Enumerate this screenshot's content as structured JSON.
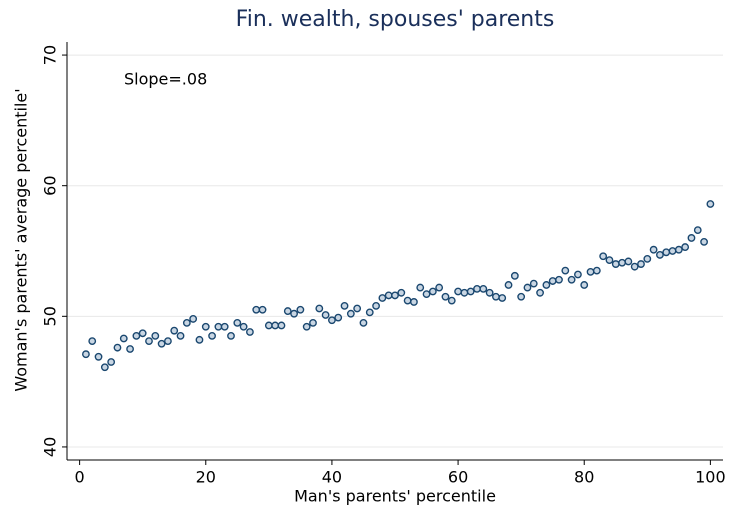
{
  "chart_data": {
    "type": "scatter",
    "title": "Fin. wealth, spouses' parents",
    "xlabel": "Man's parents' percentile",
    "ylabel": "Woman's parents' average percentile'",
    "annotation": "Slope=.08",
    "x": [
      1,
      2,
      3,
      4,
      5,
      6,
      7,
      8,
      9,
      10,
      11,
      12,
      13,
      14,
      15,
      16,
      17,
      18,
      19,
      20,
      21,
      22,
      23,
      24,
      25,
      26,
      27,
      28,
      29,
      30,
      31,
      32,
      33,
      34,
      35,
      36,
      37,
      38,
      39,
      40,
      41,
      42,
      43,
      44,
      45,
      46,
      47,
      48,
      49,
      50,
      51,
      52,
      53,
      54,
      55,
      56,
      57,
      58,
      59,
      60,
      61,
      62,
      63,
      64,
      65,
      66,
      67,
      68,
      69,
      70,
      71,
      72,
      73,
      74,
      75,
      76,
      77,
      78,
      79,
      80,
      81,
      82,
      83,
      84,
      85,
      86,
      87,
      88,
      89,
      90,
      91,
      92,
      93,
      94,
      95,
      96,
      97,
      98,
      99,
      100
    ],
    "values": [
      47.1,
      48.1,
      46.9,
      46.1,
      46.5,
      47.6,
      48.3,
      47.5,
      48.5,
      48.7,
      48.1,
      48.5,
      47.9,
      48.1,
      48.9,
      48.5,
      49.5,
      49.8,
      48.2,
      49.2,
      48.5,
      49.2,
      49.2,
      48.5,
      49.5,
      49.2,
      48.8,
      50.5,
      50.5,
      49.3,
      49.3,
      49.3,
      50.4,
      50.2,
      50.5,
      49.2,
      49.5,
      50.6,
      50.1,
      49.7,
      49.9,
      50.8,
      50.2,
      50.6,
      49.5,
      50.3,
      50.8,
      51.4,
      51.6,
      51.6,
      51.8,
      51.2,
      51.1,
      52.2,
      51.7,
      51.9,
      52.2,
      51.5,
      51.2,
      51.9,
      51.8,
      51.9,
      52.1,
      52.1,
      51.8,
      51.5,
      51.4,
      52.4,
      53.1,
      51.5,
      52.2,
      52.5,
      51.8,
      52.4,
      52.7,
      52.8,
      53.5,
      52.8,
      53.2,
      52.4,
      53.4,
      53.5,
      54.6,
      54.3,
      54.0,
      54.1,
      54.2,
      53.8,
      54.0,
      54.4,
      55.1,
      54.7,
      54.9,
      55.0,
      55.1,
      55.3,
      56.0,
      56.6,
      55.7,
      58.6
    ],
    "color": "#1a476f",
    "xlim": [
      -2,
      102
    ],
    "ylim": [
      39,
      71
    ],
    "xticks": [
      0,
      20,
      40,
      60,
      80,
      100
    ],
    "yticks": [
      40,
      50,
      60,
      70
    ],
    "grid": true
  }
}
